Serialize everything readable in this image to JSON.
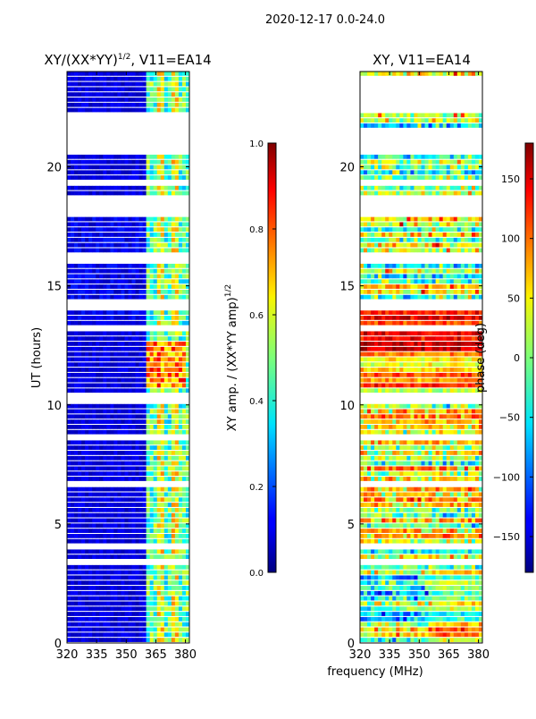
{
  "figure": {
    "suptitle": "2020-12-17 0.0-24.0",
    "xlabel": "frequency (MHz)"
  },
  "chart_data": [
    {
      "type": "heatmap",
      "title_main": "XY/(XX*YY)",
      "title_sup": "1/2",
      "title_rest": ", V11=EA14",
      "xlabel": "",
      "ylabel": "UT (hours)",
      "xlim": [
        320,
        382
      ],
      "ylim": [
        0,
        24
      ],
      "xticks": [
        "320",
        "335",
        "350",
        "365",
        "380"
      ],
      "xtick_values": [
        320,
        335,
        350,
        365,
        380
      ],
      "yticks": [
        "0",
        "5",
        "10",
        "15",
        "20"
      ],
      "ytick_values": [
        0,
        5,
        10,
        15,
        20
      ],
      "gaps_hours": [
        [
          21.7,
          22.3
        ],
        [
          20.5,
          21.5
        ],
        [
          19.3,
          19.5
        ],
        [
          17.8,
          18.8
        ],
        [
          16.0,
          16.3
        ],
        [
          14.0,
          14.3
        ],
        [
          13.0,
          13.2
        ],
        [
          10.0,
          10.4
        ],
        [
          8.5,
          8.7
        ],
        [
          6.5,
          6.7
        ],
        [
          4.0,
          4.2
        ],
        [
          3.2,
          3.4
        ],
        [
          1.3,
          1.4
        ]
      ],
      "colorbar": {
        "label_main": "XY amp. / (XX*YY amp)",
        "label_sup": "1/2",
        "range": [
          0.0,
          1.0
        ],
        "ticks": [
          "0.0",
          "0.2",
          "0.4",
          "0.6",
          "0.8",
          "1.0"
        ],
        "tick_values": [
          0.0,
          0.2,
          0.4,
          0.6,
          0.8,
          1.0
        ]
      }
    },
    {
      "type": "heatmap",
      "title_main": "XY, V11=EA14",
      "title_sup": "",
      "title_rest": "",
      "xlabel": "",
      "ylabel": "",
      "xlim": [
        320,
        382
      ],
      "ylim": [
        0,
        24
      ],
      "xticks": [
        "320",
        "335",
        "350",
        "365",
        "380"
      ],
      "xtick_values": [
        320,
        335,
        350,
        365,
        380
      ],
      "yticks": [
        "0",
        "5",
        "10",
        "15",
        "20"
      ],
      "ytick_values": [
        0,
        5,
        10,
        15,
        20
      ],
      "gaps_hours": [
        [
          22.3,
          23.7
        ],
        [
          20.5,
          21.5
        ],
        [
          19.3,
          19.5
        ],
        [
          17.8,
          18.8
        ],
        [
          16.0,
          16.3
        ],
        [
          14.0,
          14.3
        ],
        [
          13.0,
          13.2
        ],
        [
          10.0,
          10.4
        ],
        [
          8.5,
          8.7
        ],
        [
          6.5,
          6.7
        ],
        [
          4.0,
          4.2
        ],
        [
          3.2,
          3.4
        ],
        [
          1.3,
          1.4
        ]
      ],
      "colorbar": {
        "label_main": "phase (deg)",
        "label_sup": "",
        "range": [
          -180,
          180
        ],
        "ticks": [
          "−150",
          "−100",
          "−50",
          "0",
          "50",
          "100",
          "150"
        ],
        "tick_values": [
          -150,
          -100,
          -50,
          0,
          50,
          100,
          150
        ]
      }
    }
  ]
}
